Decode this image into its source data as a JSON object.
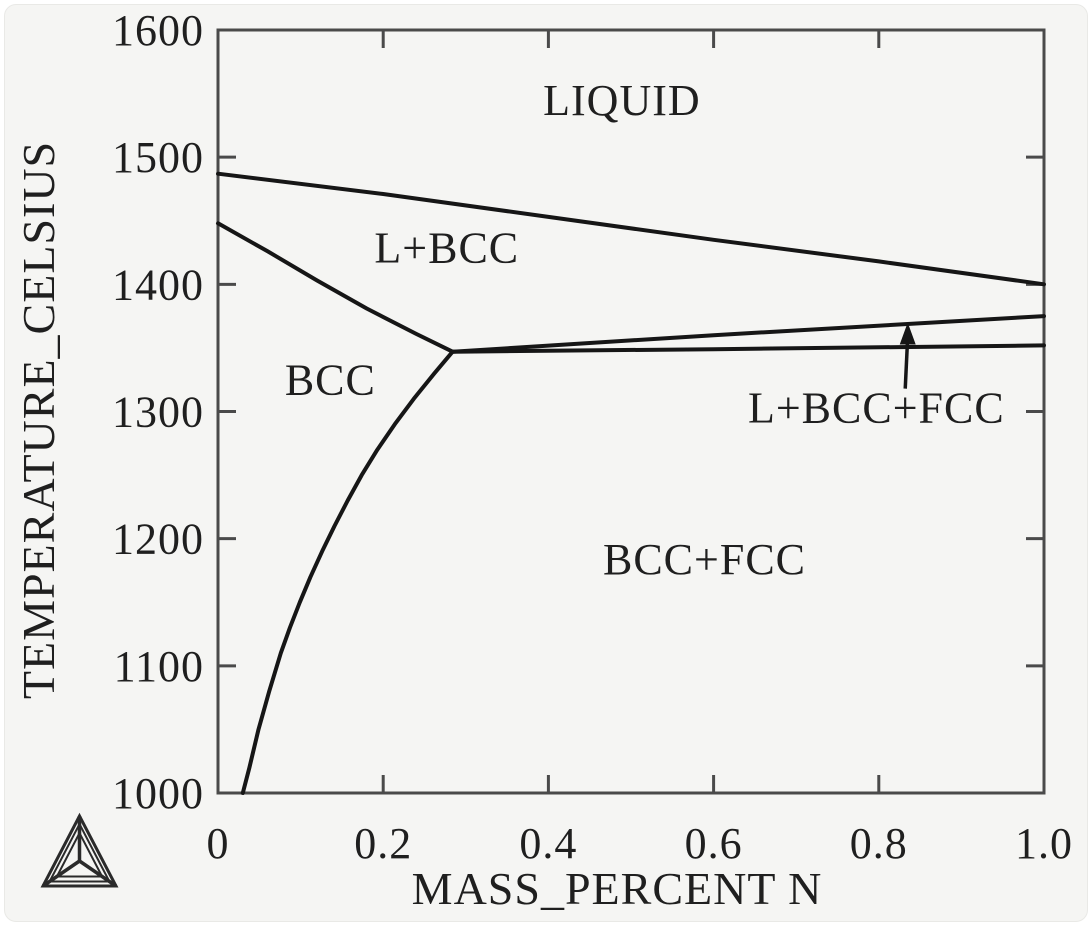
{
  "chart_data": {
    "type": "line",
    "title": "",
    "xlabel": "MASS_PERCENT N",
    "ylabel": "TEMPERATURE_CELSIUS",
    "xlim": [
      0,
      1.0
    ],
    "ylim": [
      1000,
      1600
    ],
    "grid": false,
    "legend": "none",
    "x_ticks": {
      "values": [
        0,
        0.2,
        0.4,
        0.6,
        0.8,
        1.0
      ],
      "labels": [
        "0",
        "0.2",
        "0.4",
        "0.6",
        "0.8",
        "1.0"
      ]
    },
    "y_ticks": {
      "values": [
        1000,
        1100,
        1200,
        1300,
        1400,
        1500,
        1600
      ],
      "labels": [
        "1000",
        "1100",
        "1200",
        "1300",
        "1400",
        "1500",
        "1600"
      ]
    },
    "invariant_point": {
      "x": 0.284,
      "t": 1347
    },
    "boundaries": [
      {
        "name": "liquidus",
        "points": [
          [
            0,
            1487
          ],
          [
            0.2,
            1471
          ],
          [
            0.4,
            1453
          ],
          [
            0.6,
            1435
          ],
          [
            0.8,
            1418
          ],
          [
            1.0,
            1400
          ]
        ]
      },
      {
        "name": "solidus",
        "points": [
          [
            0,
            1448
          ],
          [
            0.06,
            1426
          ],
          [
            0.12,
            1403
          ],
          [
            0.18,
            1381
          ],
          [
            0.24,
            1361
          ],
          [
            0.284,
            1347
          ]
        ]
      },
      {
        "name": "l-bcc-fcc-upper",
        "points": [
          [
            0.284,
            1347
          ],
          [
            0.6,
            1360
          ],
          [
            1.0,
            1375
          ]
        ]
      },
      {
        "name": "l-bcc-fcc-lower",
        "points": [
          [
            0.284,
            1347
          ],
          [
            0.6,
            1349
          ],
          [
            1.0,
            1352
          ]
        ]
      },
      {
        "name": "bcc-solvus",
        "points": [
          [
            0.284,
            1347
          ],
          [
            0.262,
            1330
          ],
          [
            0.237,
            1310
          ],
          [
            0.214,
            1290
          ],
          [
            0.193,
            1270
          ],
          [
            0.174,
            1250
          ],
          [
            0.157,
            1230
          ],
          [
            0.141,
            1210
          ],
          [
            0.126,
            1190
          ],
          [
            0.112,
            1170
          ],
          [
            0.099,
            1150
          ],
          [
            0.087,
            1130
          ],
          [
            0.076,
            1110
          ],
          [
            0.062,
            1080
          ],
          [
            0.049,
            1050
          ],
          [
            0.038,
            1020
          ],
          [
            0.03,
            1000
          ]
        ]
      }
    ],
    "regions": [
      {
        "label": "LIQUID",
        "x": 0.489,
        "t": 1545
      },
      {
        "label": "L+BCC",
        "x": 0.277,
        "t": 1429
      },
      {
        "label": "BCC",
        "x": 0.136,
        "t": 1325
      },
      {
        "label": "L+BCC+FCC",
        "x": 0.797,
        "t": 1303
      },
      {
        "label": "BCC+FCC",
        "x": 0.589,
        "t": 1184
      }
    ],
    "annotation": {
      "arrow_from": [
        0.832,
        1318
      ],
      "arrow_to": [
        0.835,
        1370
      ]
    },
    "colors": {
      "boundary_line": "#161616",
      "frame": "#4a4a4a",
      "text": "#1f1f1f",
      "background": "#f5f5f3"
    }
  },
  "logo": {
    "name": "thermo-calc-triangle-logo"
  }
}
